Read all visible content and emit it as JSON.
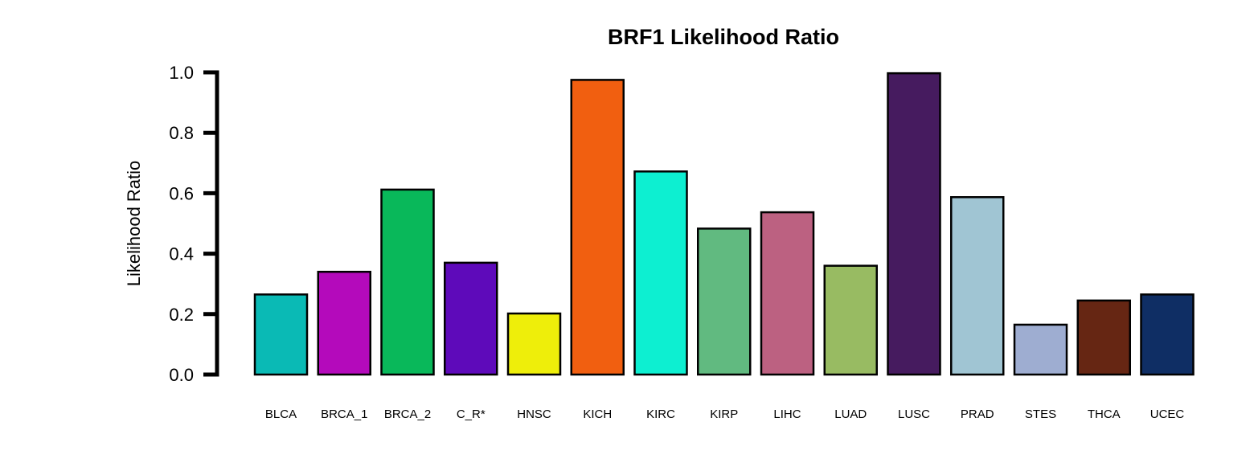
{
  "chart_data": {
    "type": "bar",
    "title": "BRF1 Likelihood Ratio",
    "xlabel": "",
    "ylabel": "Likelihood Ratio",
    "ylim": [
      0,
      1.0
    ],
    "yticks": [
      "0.0",
      "0.2",
      "0.4",
      "0.6",
      "0.8",
      "1.0"
    ],
    "grid": false,
    "categories": [
      "BLCA",
      "BRCA_1",
      "BRCA_2",
      "C_R*",
      "HNSC",
      "KICH",
      "KIRC",
      "KIRP",
      "LIHC",
      "LUAD",
      "LUSC",
      "PRAD",
      "STES",
      "THCA",
      "UCEC"
    ],
    "values": [
      0.265,
      0.34,
      0.612,
      0.37,
      0.202,
      0.975,
      0.672,
      0.483,
      0.537,
      0.36,
      0.997,
      0.587,
      0.165,
      0.245,
      0.265
    ],
    "colors": [
      "#0ABAB5",
      "#B40ABB",
      "#09B85A",
      "#5E0ABA",
      "#EEEE0A",
      "#F15F10",
      "#0DEFD1",
      "#61BA80",
      "#BC6181",
      "#98BB62",
      "#461B5F",
      "#A0C5D3",
      "#9EADD1",
      "#662613",
      "#0F2E64"
    ]
  }
}
